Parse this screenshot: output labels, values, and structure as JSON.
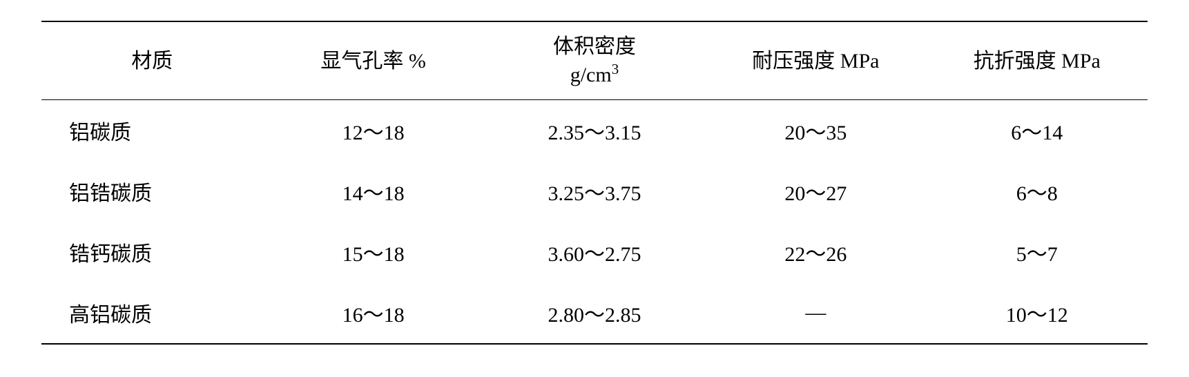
{
  "table": {
    "columns": [
      {
        "key": "material",
        "label_line1": "材质",
        "label_line2": ""
      },
      {
        "key": "porosity",
        "label_line1": "显气孔率 %",
        "label_line2": ""
      },
      {
        "key": "density",
        "label_line1": "体积密度",
        "label_line2": "g/cm³"
      },
      {
        "key": "compressive",
        "label_line1": "耐压强度 MPa",
        "label_line2": ""
      },
      {
        "key": "flexural",
        "label_line1": "抗折强度 MPa",
        "label_line2": ""
      }
    ],
    "rows": [
      {
        "material": "铝碳质",
        "porosity": "12～18",
        "density": "2.35～3.15",
        "compressive": "20～35",
        "flexural": "6～14"
      },
      {
        "material": "铝锆碳质",
        "porosity": "14～18",
        "density": "3.25～3.75",
        "compressive": "20～27",
        "flexural": "6～8"
      },
      {
        "material": "锆钙碳质",
        "porosity": "15～18",
        "density": "3.60～2.75",
        "compressive": "22～26",
        "flexural": "5～7"
      },
      {
        "material": "高铝碳质",
        "porosity": "16～18",
        "density": "2.80～2.85",
        "compressive": "—",
        "flexural": "10～12"
      }
    ],
    "styling": {
      "border_top_width": 2.5,
      "border_header_width": 1.5,
      "border_bottom_width": 2.5,
      "border_color": "#000000",
      "background_color": "#ffffff",
      "text_color": "#000000",
      "header_fontsize": 30,
      "cell_fontsize": 30,
      "font_family": "SimSun"
    }
  }
}
